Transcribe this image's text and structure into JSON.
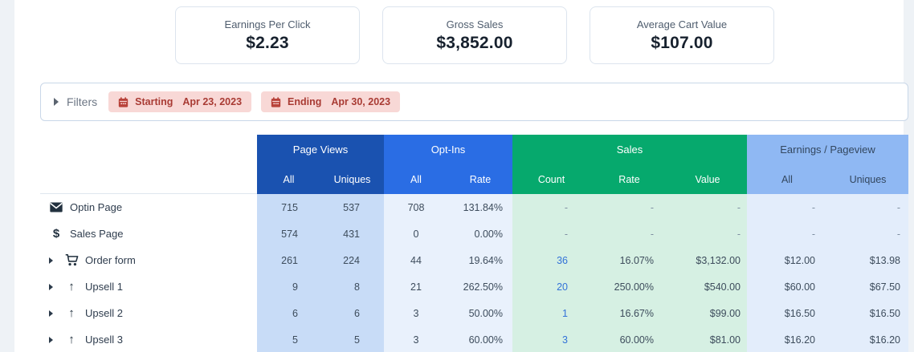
{
  "cards": [
    {
      "label": "Earnings Per Click",
      "value": "$2.23"
    },
    {
      "label": "Gross Sales",
      "value": "$3,852.00"
    },
    {
      "label": "Average Cart Value",
      "value": "$107.00"
    }
  ],
  "filters": {
    "label": "Filters",
    "badges": [
      {
        "name": "Starting",
        "date": "Apr 23, 2023"
      },
      {
        "name": "Ending",
        "date": "Apr 30, 2023"
      }
    ]
  },
  "colors": {
    "pageviews_header": "#1a52b0",
    "optins_header": "#2a6de4",
    "sales_header": "#06a96d",
    "earnings_header": "#8fb8f3",
    "pageviews_body": "#c8dcf7",
    "optins_body": "#e9f1fc",
    "sales_body": "#d6f0e3",
    "earnings_body": "#e3edfb",
    "badge_bg": "#f8d8d6",
    "badge_text": "#a93b34",
    "link_blue": "#3372d8"
  },
  "table": {
    "groups": [
      {
        "label": "Page Views",
        "columns": [
          "All",
          "Uniques"
        ]
      },
      {
        "label": "Opt-Ins",
        "columns": [
          "All",
          "Rate"
        ]
      },
      {
        "label": "Sales",
        "columns": [
          "Count",
          "Rate",
          "Value"
        ]
      },
      {
        "label": "Earnings / Pageview",
        "columns": [
          "All",
          "Uniques"
        ]
      }
    ],
    "rows": [
      {
        "label": "Optin Page",
        "icon": "envelope-icon",
        "expandable": false,
        "values": [
          "715",
          "537",
          "708",
          "131.84%",
          "-",
          "-",
          "-",
          "-",
          "-"
        ]
      },
      {
        "label": "Sales Page",
        "icon": "dollar-icon",
        "expandable": false,
        "values": [
          "574",
          "431",
          "0",
          "0.00%",
          "-",
          "-",
          "-",
          "-",
          "-"
        ]
      },
      {
        "label": "Order form",
        "icon": "cart-icon",
        "expandable": true,
        "values": [
          "261",
          "224",
          "44",
          "19.64%",
          "36",
          "16.07%",
          "$3,132.00",
          "$12.00",
          "$13.98"
        ]
      },
      {
        "label": "Upsell 1",
        "icon": "arrow-up-icon",
        "expandable": true,
        "values": [
          "9",
          "8",
          "21",
          "262.50%",
          "20",
          "250.00%",
          "$540.00",
          "$60.00",
          "$67.50"
        ]
      },
      {
        "label": "Upsell 2",
        "icon": "arrow-up-icon",
        "expandable": true,
        "values": [
          "6",
          "6",
          "3",
          "50.00%",
          "1",
          "16.67%",
          "$99.00",
          "$16.50",
          "$16.50"
        ]
      },
      {
        "label": "Upsell 3",
        "icon": "arrow-up-icon",
        "expandable": true,
        "values": [
          "5",
          "5",
          "3",
          "60.00%",
          "3",
          "60.00%",
          "$81.00",
          "$16.20",
          "$16.20"
        ]
      }
    ]
  }
}
